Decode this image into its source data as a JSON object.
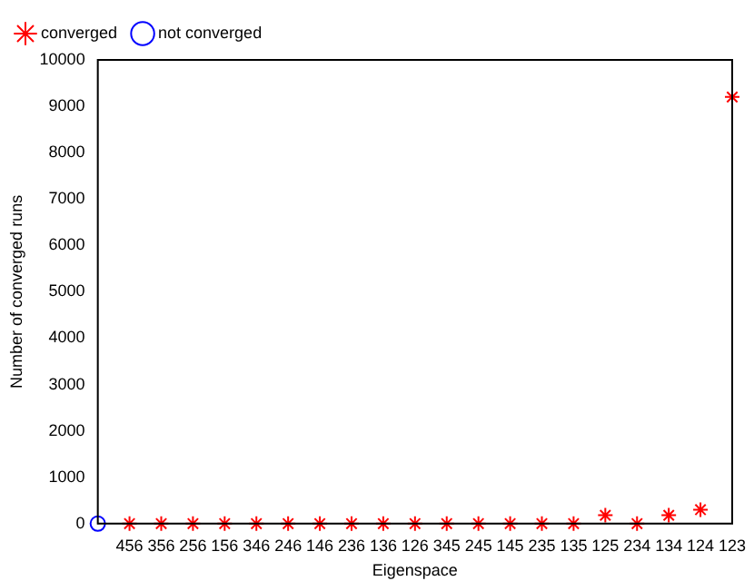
{
  "chart_data": {
    "type": "scatter",
    "xlabel": "Eigenspace",
    "ylabel": "Number of converged runs",
    "categories": [
      null,
      "456",
      "356",
      "256",
      "156",
      "346",
      "246",
      "146",
      "236",
      "136",
      "126",
      "345",
      "245",
      "145",
      "235",
      "135",
      "125",
      "234",
      "134",
      "124",
      "123"
    ],
    "ylim": [
      0,
      10000
    ],
    "yticks": [
      0,
      1000,
      2000,
      3000,
      4000,
      5000,
      6000,
      7000,
      8000,
      9000,
      10000
    ],
    "grid": false,
    "legend": "top left",
    "series": [
      {
        "name": "converged",
        "color": "#ff0000",
        "marker": "cross",
        "values": [
          null,
          0,
          0,
          0,
          0,
          0,
          0,
          0,
          0,
          0,
          0,
          0,
          0,
          0,
          0,
          0,
          180,
          0,
          180,
          300,
          9200
        ]
      },
      {
        "name": "not converged",
        "color": "#0000ff",
        "marker": "circle",
        "values": [
          0,
          null,
          null,
          null,
          null,
          null,
          null,
          null,
          null,
          null,
          null,
          null,
          null,
          null,
          null,
          null,
          null,
          null,
          null,
          null,
          null
        ]
      }
    ]
  }
}
